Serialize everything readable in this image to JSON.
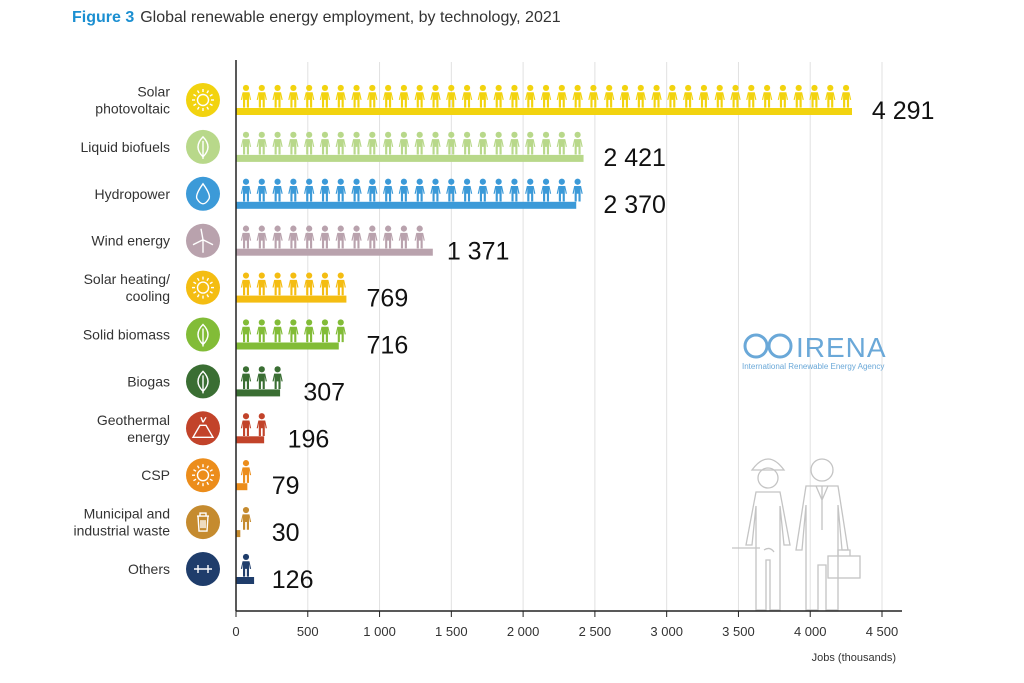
{
  "figure": {
    "label": "Figure 3",
    "title": "Global renewable energy employment, by technology, 2021"
  },
  "logo": {
    "name": "IRENA",
    "subtitle": "International Renewable Energy Agency"
  },
  "chart_data": {
    "type": "bar",
    "orientation": "horizontal",
    "title": "Global renewable energy employment, by technology, 2021",
    "xlabel": "Jobs (thousands)",
    "xlim": [
      0,
      4500
    ],
    "xticks": [
      0,
      500,
      1000,
      1500,
      2000,
      2500,
      3000,
      3500,
      4000,
      4500
    ],
    "xtick_labels": [
      "0",
      "500",
      "1 000",
      "1 500",
      "2 000",
      "2 500",
      "3 000",
      "3 500",
      "4 000",
      "4 500"
    ],
    "grid": true,
    "categories": [
      {
        "label_lines": [
          "Solar",
          "photovoltaic"
        ],
        "value": 4291,
        "value_label": "4 291",
        "color": "#f2d30f",
        "icon": "sun-icon"
      },
      {
        "label_lines": [
          "Liquid biofuels"
        ],
        "value": 2421,
        "value_label": "2 421",
        "color": "#b8d88a",
        "icon": "leaf-icon"
      },
      {
        "label_lines": [
          "Hydropower"
        ],
        "value": 2370,
        "value_label": "2 370",
        "color": "#3c9ad8",
        "icon": "water-drop-icon"
      },
      {
        "label_lines": [
          "Wind energy"
        ],
        "value": 1371,
        "value_label": "1 371",
        "color": "#b9a2ad",
        "icon": "wind-turbine-icon"
      },
      {
        "label_lines": [
          "Solar heating/",
          "cooling"
        ],
        "value": 769,
        "value_label": "769",
        "color": "#f4bd12",
        "icon": "sun-icon"
      },
      {
        "label_lines": [
          "Solid biomass"
        ],
        "value": 716,
        "value_label": "716",
        "color": "#82bc37",
        "icon": "leaf-icon"
      },
      {
        "label_lines": [
          "Biogas"
        ],
        "value": 307,
        "value_label": "307",
        "color": "#3a6e33",
        "icon": "leaf-icon"
      },
      {
        "label_lines": [
          "Geothermal",
          "energy"
        ],
        "value": 196,
        "value_label": "196",
        "color": "#c2432a",
        "icon": "volcano-icon"
      },
      {
        "label_lines": [
          "CSP"
        ],
        "value": 79,
        "value_label": "79",
        "color": "#ec8d1b",
        "icon": "sun-icon"
      },
      {
        "label_lines": [
          "Municipal and",
          "industrial waste"
        ],
        "value": 30,
        "value_label": "30",
        "color": "#c58b2f",
        "icon": "trash-bin-icon"
      },
      {
        "label_lines": [
          "Others"
        ],
        "value": 126,
        "value_label": "126",
        "color": "#1f3d6b",
        "icon": "plus-minus-icon"
      }
    ]
  }
}
